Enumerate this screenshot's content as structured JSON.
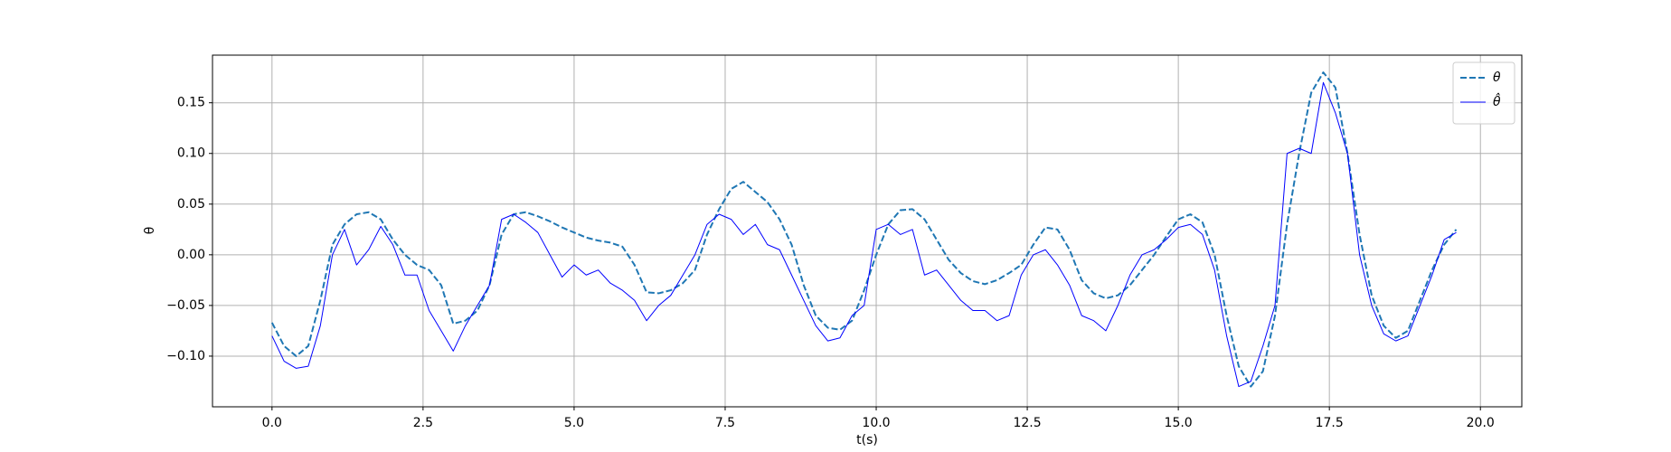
{
  "chart_data": {
    "type": "line",
    "xlabel": "t(s)",
    "ylabel": "θ",
    "x": [
      0,
      0.2,
      0.4,
      0.6,
      0.8,
      1.0,
      1.2,
      1.4,
      1.6,
      1.8,
      2.0,
      2.2,
      2.4,
      2.6,
      2.8,
      3.0,
      3.2,
      3.4,
      3.6,
      3.8,
      4.0,
      4.2,
      4.4,
      4.6,
      4.8,
      5.0,
      5.2,
      5.4,
      5.6,
      5.8,
      6.0,
      6.2,
      6.4,
      6.6,
      6.8,
      7.0,
      7.2,
      7.4,
      7.6,
      7.8,
      8.0,
      8.2,
      8.4,
      8.6,
      8.8,
      9.0,
      9.2,
      9.4,
      9.6,
      9.8,
      10.0,
      10.2,
      10.4,
      10.6,
      10.8,
      11.0,
      11.2,
      11.4,
      11.6,
      11.8,
      12.0,
      12.2,
      12.4,
      12.6,
      12.8,
      13.0,
      13.2,
      13.4,
      13.6,
      13.8,
      14.0,
      14.2,
      14.4,
      14.6,
      14.8,
      15.0,
      15.2,
      15.4,
      15.6,
      15.8,
      16.0,
      16.2,
      16.4,
      16.6,
      16.8,
      17.0,
      17.2,
      17.4,
      17.6,
      17.8,
      18.0,
      18.2,
      18.4,
      18.6,
      18.8,
      19.0,
      19.2,
      19.4,
      19.6
    ],
    "series": [
      {
        "name": "θ",
        "color": "#1f77b4",
        "dashed": true,
        "values": [
          -0.067,
          -0.09,
          -0.1,
          -0.09,
          -0.045,
          0.01,
          0.03,
          0.04,
          0.042,
          0.035,
          0.015,
          0.0,
          -0.01,
          -0.015,
          -0.03,
          -0.068,
          -0.065,
          -0.055,
          -0.03,
          0.02,
          0.04,
          0.042,
          0.038,
          0.033,
          0.027,
          0.022,
          0.017,
          0.014,
          0.012,
          0.008,
          -0.01,
          -0.037,
          -0.038,
          -0.035,
          -0.028,
          -0.015,
          0.02,
          0.045,
          0.065,
          0.072,
          0.062,
          0.052,
          0.035,
          0.01,
          -0.03,
          -0.06,
          -0.072,
          -0.074,
          -0.065,
          -0.035,
          0.0,
          0.03,
          0.044,
          0.045,
          0.035,
          0.015,
          -0.005,
          -0.018,
          -0.026,
          -0.029,
          -0.025,
          -0.018,
          -0.01,
          0.01,
          0.027,
          0.025,
          0.005,
          -0.025,
          -0.038,
          -0.043,
          -0.04,
          -0.03,
          -0.015,
          0.0,
          0.018,
          0.035,
          0.04,
          0.032,
          0.0,
          -0.06,
          -0.11,
          -0.13,
          -0.115,
          -0.06,
          0.03,
          0.1,
          0.16,
          0.18,
          0.165,
          0.1,
          0.02,
          -0.04,
          -0.07,
          -0.082,
          -0.075,
          -0.045,
          -0.015,
          0.01,
          0.025
        ]
      },
      {
        "name": "θ̂",
        "color": "#0000ff",
        "dashed": false,
        "values": [
          -0.08,
          -0.105,
          -0.112,
          -0.11,
          -0.07,
          0.0,
          0.025,
          -0.01,
          0.005,
          0.028,
          0.01,
          -0.02,
          -0.02,
          -0.055,
          -0.075,
          -0.095,
          -0.07,
          -0.05,
          -0.03,
          0.035,
          0.04,
          0.032,
          0.022,
          0.0,
          -0.022,
          -0.01,
          -0.02,
          -0.015,
          -0.028,
          -0.035,
          -0.045,
          -0.065,
          -0.05,
          -0.04,
          -0.02,
          0.0,
          0.03,
          0.04,
          0.035,
          0.02,
          0.03,
          0.01,
          0.005,
          -0.02,
          -0.045,
          -0.07,
          -0.085,
          -0.082,
          -0.06,
          -0.05,
          0.025,
          0.03,
          0.02,
          0.025,
          -0.02,
          -0.015,
          -0.03,
          -0.045,
          -0.055,
          -0.055,
          -0.065,
          -0.06,
          -0.02,
          0.0,
          0.005,
          -0.01,
          -0.03,
          -0.06,
          -0.065,
          -0.075,
          -0.05,
          -0.02,
          0.0,
          0.005,
          0.015,
          0.027,
          0.03,
          0.02,
          -0.015,
          -0.08,
          -0.13,
          -0.125,
          -0.09,
          -0.05,
          0.1,
          0.105,
          0.1,
          0.17,
          0.14,
          0.1,
          0.0,
          -0.05,
          -0.078,
          -0.085,
          -0.08,
          -0.05,
          -0.02,
          0.015,
          0.022
        ]
      }
    ],
    "xlim": [
      -0.985,
      20.685
    ],
    "ylim": [
      -0.15,
      0.197
    ],
    "xticks": [
      {
        "value": 0,
        "label": "0.0"
      },
      2.5,
      {
        "value": 5,
        "label": "5.0"
      },
      7.5,
      {
        "value": 10,
        "label": "10.0"
      },
      12.5,
      {
        "value": 15,
        "label": "15.0"
      },
      17.5,
      {
        "value": 20,
        "label": "20.0"
      }
    ],
    "yticks": [
      {
        "value": -0.1,
        "label": "−0.10"
      },
      {
        "value": -0.05,
        "label": "−0.05"
      },
      {
        "value": 0,
        "label": "0.00"
      },
      0.05,
      {
        "value": 0.1,
        "label": "0.10"
      },
      0.15
    ],
    "grid": true,
    "legend": "upper right"
  }
}
